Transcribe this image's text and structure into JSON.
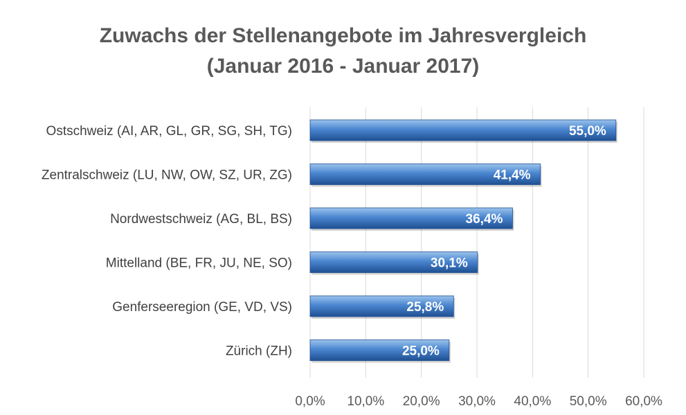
{
  "chart_data": {
    "type": "bar",
    "orientation": "horizontal",
    "title": "Zuwachs der Stellenangebote im Jahresvergleich",
    "subtitle": "(Januar 2016 - Januar 2017)",
    "categories": [
      "Ostschweiz (AI, AR, GL, GR, SG, SH, TG)",
      "Zentralschweiz (LU, NW, OW, SZ, UR, ZG)",
      "Nordwestschweiz (AG, BL, BS)",
      "Mittelland (BE, FR, JU, NE, SO)",
      "Genferseeregion (GE, VD, VS)",
      "Zürich (ZH)"
    ],
    "values": [
      55.0,
      41.4,
      36.4,
      30.1,
      25.8,
      25.0
    ],
    "data_labels": [
      "55,0%",
      "41,4%",
      "36,4%",
      "30,1%",
      "25,8%",
      "25,0%"
    ],
    "xlim": [
      0,
      60
    ],
    "x_ticks": [
      0,
      10,
      20,
      30,
      40,
      50,
      60
    ],
    "x_tick_labels": [
      "0,0%",
      "10,0%",
      "20,0%",
      "30,0%",
      "40,0%",
      "50,0%",
      "60,0%"
    ],
    "xlabel": "",
    "ylabel": "",
    "grid": "vertical",
    "legend": "none",
    "colors": {
      "bar_light": "#9cc3ec",
      "bar_mid": "#4a86d0",
      "bar_dark": "#1f4f92",
      "grid": "#d9d9d9",
      "title": "#595959",
      "label": "#404040"
    }
  }
}
